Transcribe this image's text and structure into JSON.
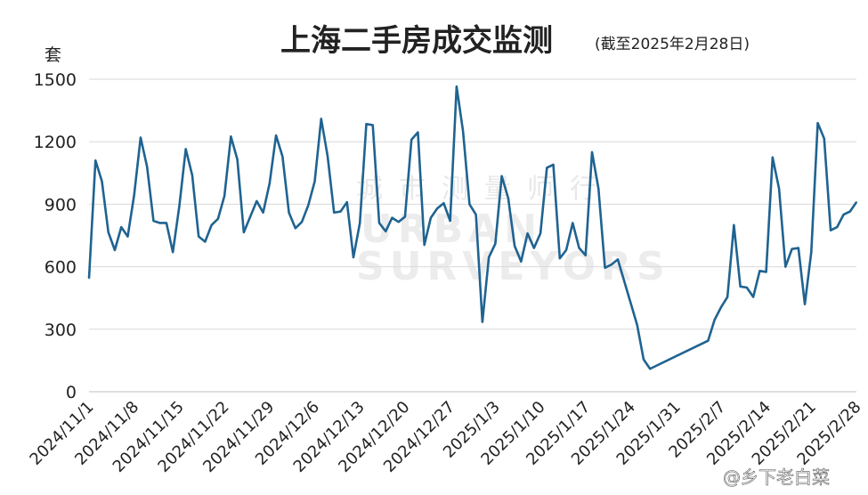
{
  "header": {
    "title": "上海二手房成交监测",
    "subtitle": "(截至2025年2月28日)",
    "unit": "套"
  },
  "watermark": {
    "cn": "城市测量师行",
    "en1": "URBAN",
    "en2": "SURVEYORS"
  },
  "credit": "@乡下老白菜",
  "colors": {
    "line": "#1f6391",
    "grid": "#d9d9d9"
  },
  "chart_data": {
    "type": "line",
    "title": "上海二手房成交监测",
    "ylabel": "套",
    "ylim": [
      0,
      1500
    ],
    "yticks": [
      0,
      300,
      600,
      900,
      1200,
      1500
    ],
    "xlim": [
      "2024-11-01",
      "2025-02-28"
    ],
    "xticks": [
      "2024/11/1",
      "2024/11/8",
      "2024/11/15",
      "2024/11/22",
      "2024/11/29",
      "2024/12/6",
      "2024/12/13",
      "2024/12/20",
      "2024/12/27",
      "2025/1/3",
      "2025/1/10",
      "2025/1/17",
      "2025/1/24",
      "2025/1/31",
      "2025/2/7",
      "2025/2/14",
      "2025/2/21",
      "2025/2/28"
    ],
    "grid": true,
    "legend": "none",
    "series": [
      {
        "points": [
          [
            "2024-11-01",
            545
          ],
          [
            "2024-11-02",
            1110
          ],
          [
            "2024-11-03",
            1010
          ],
          [
            "2024-11-04",
            765
          ],
          [
            "2024-11-05",
            680
          ],
          [
            "2024-11-06",
            790
          ],
          [
            "2024-11-07",
            745
          ],
          [
            "2024-11-08",
            945
          ],
          [
            "2024-11-09",
            1220
          ],
          [
            "2024-11-10",
            1080
          ],
          [
            "2024-11-11",
            820
          ],
          [
            "2024-11-12",
            810
          ],
          [
            "2024-11-13",
            810
          ],
          [
            "2024-11-14",
            670
          ],
          [
            "2024-11-15",
            890
          ],
          [
            "2024-11-16",
            1165
          ],
          [
            "2024-11-17",
            1040
          ],
          [
            "2024-11-18",
            745
          ],
          [
            "2024-11-19",
            720
          ],
          [
            "2024-11-20",
            800
          ],
          [
            "2024-11-21",
            830
          ],
          [
            "2024-11-22",
            940
          ],
          [
            "2024-11-23",
            1225
          ],
          [
            "2024-11-24",
            1115
          ],
          [
            "2024-11-25",
            765
          ],
          [
            "2024-11-26",
            840
          ],
          [
            "2024-11-27",
            915
          ],
          [
            "2024-11-28",
            860
          ],
          [
            "2024-11-29",
            1000
          ],
          [
            "2024-11-30",
            1230
          ],
          [
            "2024-12-01",
            1130
          ],
          [
            "2024-12-02",
            860
          ],
          [
            "2024-12-03",
            785
          ],
          [
            "2024-12-04",
            815
          ],
          [
            "2024-12-05",
            895
          ],
          [
            "2024-12-06",
            1010
          ],
          [
            "2024-12-07",
            1310
          ],
          [
            "2024-12-08",
            1130
          ],
          [
            "2024-12-09",
            860
          ],
          [
            "2024-12-10",
            865
          ],
          [
            "2024-12-11",
            910
          ],
          [
            "2024-12-12",
            645
          ],
          [
            "2024-12-13",
            810
          ],
          [
            "2024-12-14",
            1285
          ],
          [
            "2024-12-15",
            1280
          ],
          [
            "2024-12-16",
            810
          ],
          [
            "2024-12-17",
            770
          ],
          [
            "2024-12-18",
            835
          ],
          [
            "2024-12-19",
            815
          ],
          [
            "2024-12-20",
            840
          ],
          [
            "2024-12-21",
            1210
          ],
          [
            "2024-12-22",
            1245
          ],
          [
            "2024-12-23",
            705
          ],
          [
            "2024-12-24",
            835
          ],
          [
            "2024-12-25",
            880
          ],
          [
            "2024-12-26",
            905
          ],
          [
            "2024-12-27",
            820
          ],
          [
            "2024-12-28",
            1465
          ],
          [
            "2024-12-29",
            1250
          ],
          [
            "2024-12-30",
            900
          ],
          [
            "2024-12-31",
            850
          ],
          [
            "2025-01-01",
            335
          ],
          [
            "2025-01-02",
            645
          ],
          [
            "2025-01-03",
            710
          ],
          [
            "2025-01-04",
            1035
          ],
          [
            "2025-01-05",
            930
          ],
          [
            "2025-01-06",
            700
          ],
          [
            "2025-01-07",
            625
          ],
          [
            "2025-01-08",
            760
          ],
          [
            "2025-01-09",
            690
          ],
          [
            "2025-01-10",
            760
          ],
          [
            "2025-01-11",
            1075
          ],
          [
            "2025-01-12",
            1090
          ],
          [
            "2025-01-13",
            640
          ],
          [
            "2025-01-14",
            680
          ],
          [
            "2025-01-15",
            810
          ],
          [
            "2025-01-16",
            690
          ],
          [
            "2025-01-17",
            655
          ],
          [
            "2025-01-18",
            1150
          ],
          [
            "2025-01-19",
            975
          ],
          [
            "2025-01-20",
            595
          ],
          [
            "2025-01-21",
            610
          ],
          [
            "2025-01-22",
            635
          ],
          [
            "2025-01-23",
            530
          ],
          [
            "2025-01-24",
            425
          ],
          [
            "2025-01-25",
            320
          ],
          [
            "2025-01-26",
            155
          ],
          [
            "2025-01-27",
            110
          ],
          [
            "2025-02-05",
            245
          ],
          [
            "2025-02-06",
            345
          ],
          [
            "2025-02-07",
            405
          ],
          [
            "2025-02-08",
            455
          ],
          [
            "2025-02-09",
            800
          ],
          [
            "2025-02-10",
            505
          ],
          [
            "2025-02-11",
            500
          ],
          [
            "2025-02-12",
            455
          ],
          [
            "2025-02-13",
            580
          ],
          [
            "2025-02-14",
            575
          ],
          [
            "2025-02-15",
            1125
          ],
          [
            "2025-02-16",
            975
          ],
          [
            "2025-02-17",
            600
          ],
          [
            "2025-02-18",
            685
          ],
          [
            "2025-02-19",
            690
          ],
          [
            "2025-02-20",
            420
          ],
          [
            "2025-02-21",
            670
          ],
          [
            "2025-02-22",
            1290
          ],
          [
            "2025-02-23",
            1215
          ],
          [
            "2025-02-24",
            775
          ],
          [
            "2025-02-25",
            790
          ],
          [
            "2025-02-26",
            850
          ],
          [
            "2025-02-27",
            865
          ],
          [
            "2025-02-28",
            910
          ]
        ]
      }
    ]
  }
}
